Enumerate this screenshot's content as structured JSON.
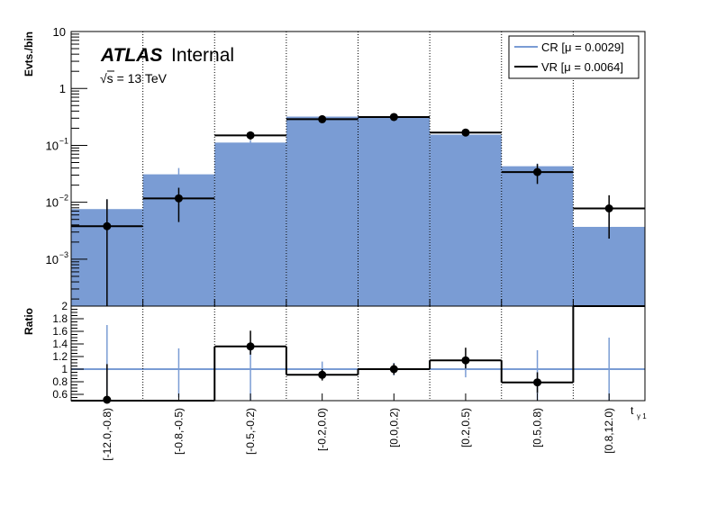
{
  "chart_data": {
    "type": "histogram",
    "experiment": "ATLAS",
    "status": "Internal",
    "energy": "√s = 13 TeV",
    "ylabel": "Evts./bin",
    "ratio_ylabel": "Ratio",
    "xlabel": "t",
    "xlabel_sub": "γ 1",
    "yscale": "log",
    "ylim": [
      0.00015,
      10
    ],
    "y_ticks": [
      {
        "value": 10,
        "label": "10"
      },
      {
        "value": 1,
        "label": "1"
      },
      {
        "value": 0.1,
        "label": "10",
        "exp": "−1"
      },
      {
        "value": 0.01,
        "label": "10",
        "exp": "−2"
      },
      {
        "value": 0.001,
        "label": "10",
        "exp": "−3"
      }
    ],
    "ratio_ylim": [
      0.5,
      2.0
    ],
    "ratio_ticks": [
      "0.6",
      "0.8",
      "1",
      "1.2",
      "1.4",
      "1.6",
      "1.8",
      "2"
    ],
    "categories": [
      "[-12.0,-0.8)",
      "[-0.8,-0.5)",
      "[-0.5,-0.2)",
      "[-0.2,0.0)",
      "[0.0,0.2)",
      "[0.2,0.5)",
      "[0.5,0.8)",
      "[0.8,12.0)"
    ],
    "legend_position": "top-right",
    "grid": "vertical-dotted",
    "series": [
      {
        "name": "CR [μ = 0.0029]",
        "color": "#7a9cd4",
        "style": "filled",
        "values": [
          0.0076,
          0.031,
          0.112,
          0.32,
          0.31,
          0.154,
          0.043,
          0.0037
        ],
        "err_low": [
          0.0076,
          0.01,
          0.01,
          0.01,
          0.01,
          0.01,
          0.005,
          0.0037
        ],
        "err_high": [
          0.0037,
          0.009,
          0.01,
          0.01,
          0.01,
          0.01,
          0.005,
          0.005
        ]
      },
      {
        "name": "VR [μ = 0.0064]",
        "color": "#000000",
        "style": "points",
        "values": [
          0.0038,
          0.0117,
          0.15,
          0.288,
          0.315,
          0.168,
          0.034,
          0.0078
        ],
        "err_low": [
          0.0038,
          0.0072,
          0.025,
          0.04,
          0.035,
          0.02,
          0.013,
          0.0055
        ],
        "err_high": [
          0.0075,
          0.0063,
          0.025,
          0.04,
          0.035,
          0.02,
          0.013,
          0.0055
        ]
      }
    ],
    "ratio": {
      "values": [
        0.5,
        0.5,
        1.36,
        0.91,
        1.0,
        1.14,
        0.79,
        2.0
      ],
      "err_low": [
        0.5,
        0.0,
        0.13,
        0.09,
        0.09,
        0.13,
        0.17,
        0.0
      ],
      "err_high": [
        0.58,
        0.0,
        0.25,
        0.09,
        0.09,
        0.2,
        0.16,
        0.0
      ],
      "cr_err_low": [
        1.0,
        0.45,
        0.5,
        0.12,
        0.1,
        0.13,
        0.5,
        0.5
      ],
      "cr_err_high": [
        0.7,
        0.33,
        0.4,
        0.12,
        0.1,
        0.13,
        0.3,
        0.5
      ]
    }
  }
}
